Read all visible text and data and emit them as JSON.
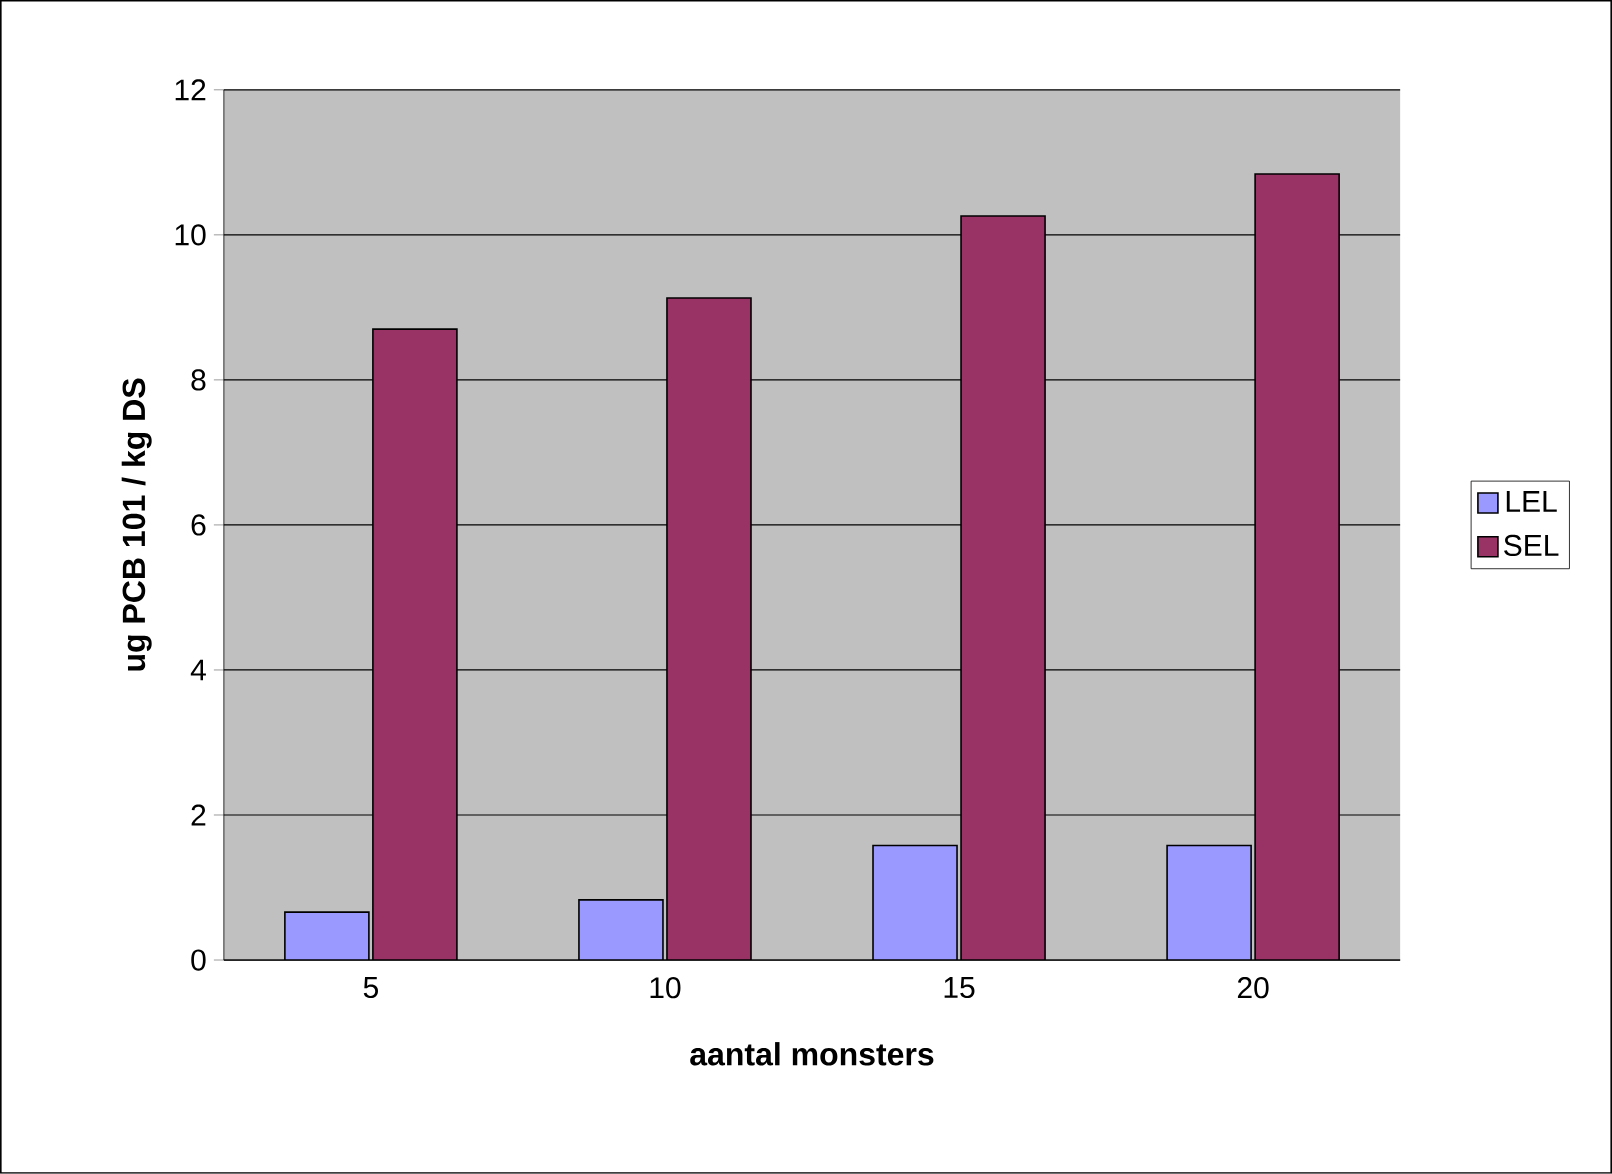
{
  "chart_data": {
    "type": "bar",
    "xlabel": "aantal monsters",
    "ylabel": "ug PCB 101 / kg DS",
    "categories": [
      "5",
      "10",
      "15",
      "20"
    ],
    "series": [
      {
        "name": "LEL",
        "color": "#9999ff",
        "values": [
          0.66,
          0.83,
          1.58,
          1.58
        ]
      },
      {
        "name": "SEL",
        "color": "#993366",
        "values": [
          8.7,
          9.13,
          10.26,
          10.84
        ]
      }
    ],
    "ylim": [
      0,
      12
    ],
    "yticks": [
      0,
      2,
      4,
      6,
      8,
      10,
      12
    ],
    "grid": "y",
    "legend": "right"
  }
}
